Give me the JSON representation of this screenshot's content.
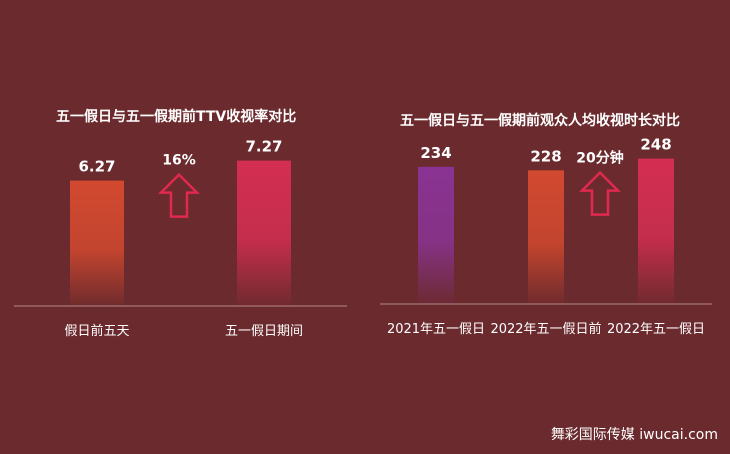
{
  "chart_data": [
    {
      "type": "bar",
      "title": "五一假日与五一假期前TTV收视率对比",
      "categories": [
        "假日前五天",
        "五一假日期间"
      ],
      "values": [
        6.27,
        7.27
      ],
      "value_labels": [
        "6.27",
        "7.27"
      ],
      "ylim": [
        0,
        8.5
      ],
      "annotation": {
        "text": "16%",
        "direction": "up"
      },
      "colors": [
        "#d2492f",
        "#d42e52"
      ]
    },
    {
      "type": "bar",
      "title": "五一假日与五一假期前观众人均收视时长对比",
      "categories": [
        "2021年五一假日",
        "2022年五一假日前",
        "2022年五一假日"
      ],
      "values": [
        234,
        228,
        248
      ],
      "value_labels": [
        "234",
        "228",
        "248"
      ],
      "ylim": [
        0,
        290
      ],
      "annotation": {
        "text": "20分钟",
        "direction": "up"
      },
      "colors": [
        "#8a3394",
        "#d2492f",
        "#d42e52"
      ]
    }
  ],
  "watermark": "舞彩国际传媒 iwucai.com"
}
